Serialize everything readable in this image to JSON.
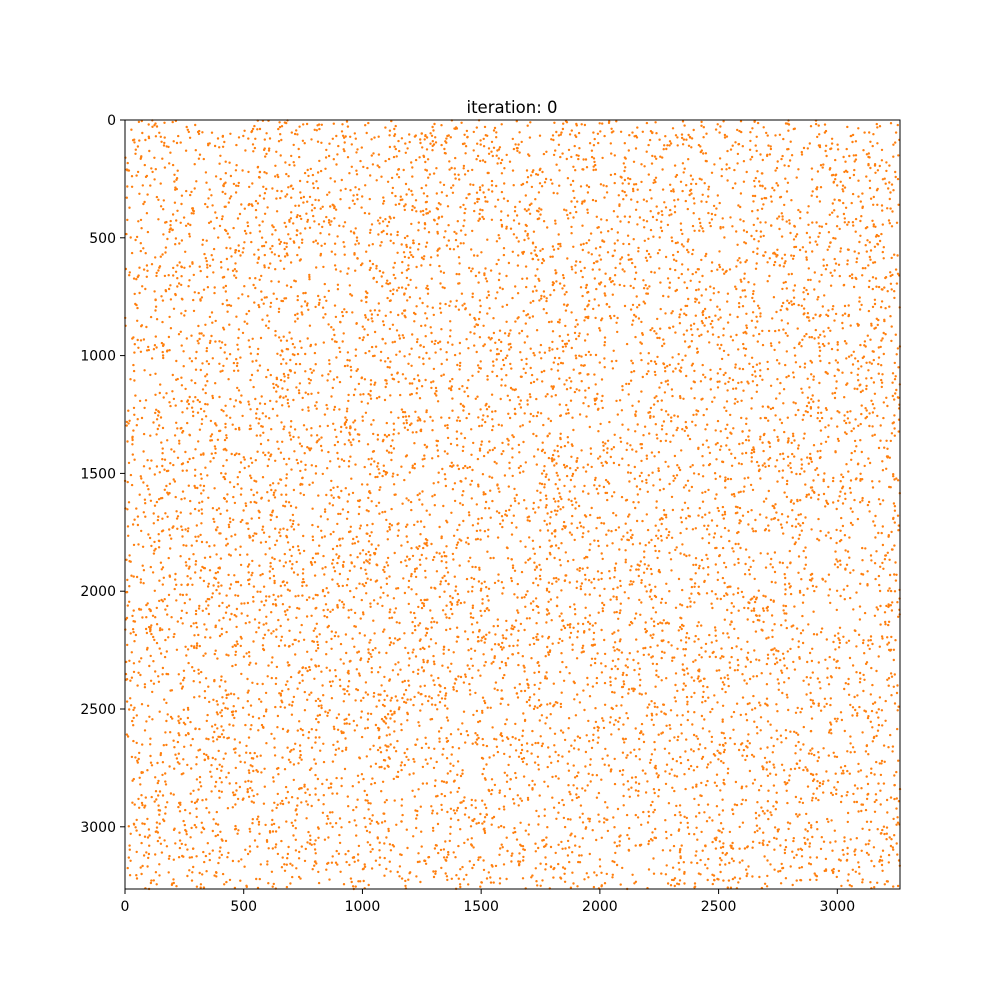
{
  "chart_data": {
    "type": "scatter",
    "title": "iteration: 0",
    "xlabel": "",
    "ylabel": "",
    "xlim": [
      0,
      3264
    ],
    "ylim": [
      3264,
      0
    ],
    "y_inverted": true,
    "xticks": [
      0,
      500,
      1000,
      1500,
      2000,
      2500,
      3000
    ],
    "yticks": [
      0,
      500,
      1000,
      1500,
      2000,
      2500,
      3000
    ],
    "xtick_labels": [
      "0",
      "500",
      "1000",
      "1500",
      "2000",
      "2500",
      "3000"
    ],
    "ytick_labels": [
      "0",
      "500",
      "1000",
      "1500",
      "2000",
      "2500",
      "3000"
    ],
    "grid": false,
    "legend": "none",
    "marker_color": "#ff7f0e",
    "point_distribution": "uniform random over the full axis range",
    "approx_point_count": 10000,
    "sample_points": [
      [
        40,
        95
      ],
      [
        135,
        2140
      ],
      [
        258,
        3020
      ],
      [
        370,
        1180
      ],
      [
        455,
        640
      ],
      [
        540,
        2710
      ],
      [
        612,
        1550
      ],
      [
        700,
        330
      ],
      [
        785,
        2290
      ],
      [
        860,
        1020
      ],
      [
        945,
        2980
      ],
      [
        1020,
        1720
      ],
      [
        1105,
        450
      ],
      [
        1190,
        2460
      ],
      [
        1270,
        1240
      ],
      [
        1350,
        3140
      ],
      [
        1430,
        780
      ],
      [
        1515,
        1960
      ],
      [
        1600,
        2870
      ],
      [
        1680,
        560
      ],
      [
        1760,
        1400
      ],
      [
        1845,
        2600
      ],
      [
        1930,
        210
      ],
      [
        2010,
        2050
      ],
      [
        2095,
        1130
      ],
      [
        2170,
        3080
      ],
      [
        2255,
        690
      ],
      [
        2340,
        1840
      ],
      [
        2425,
        2380
      ],
      [
        2505,
        970
      ],
      [
        2590,
        3220
      ],
      [
        2670,
        1490
      ],
      [
        2755,
        410
      ],
      [
        2840,
        2750
      ],
      [
        2920,
        1610
      ],
      [
        3005,
        2200
      ],
      [
        3090,
        870
      ],
      [
        3170,
        3010
      ],
      [
        3230,
        1330
      ],
      [
        80,
        1470
      ]
    ]
  }
}
